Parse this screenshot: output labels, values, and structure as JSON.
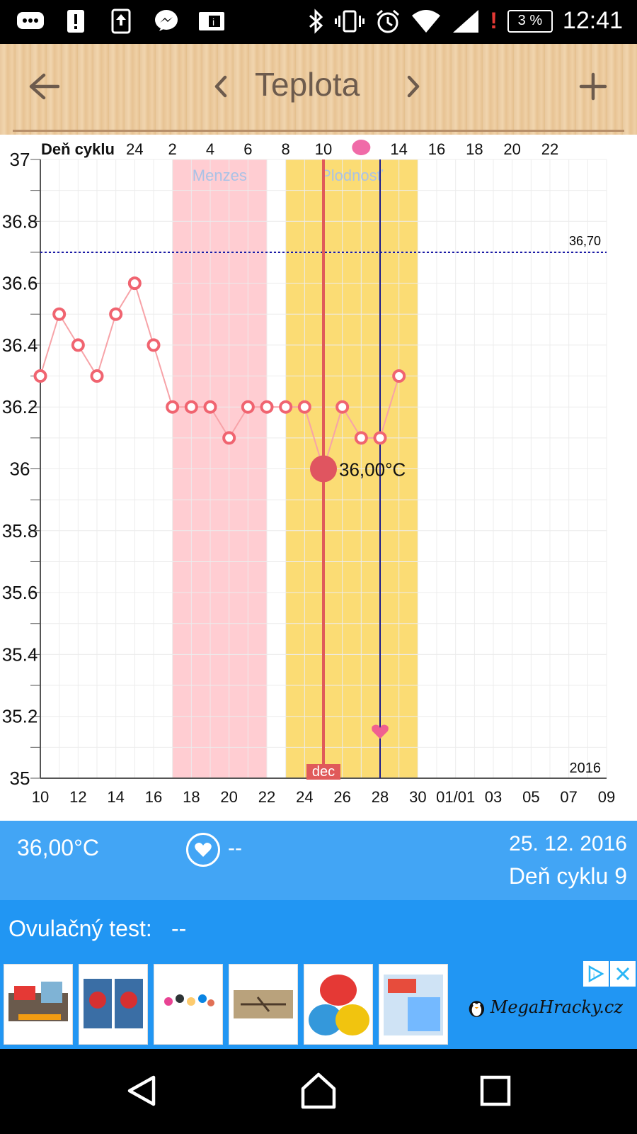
{
  "status_bar": {
    "time": "12:41",
    "battery": "3 %",
    "alert": "!",
    "icons": [
      "chat-icon",
      "alert-icon",
      "upload-icon",
      "messenger-icon",
      "info-card-icon",
      "bluetooth-icon",
      "vibrate-icon",
      "alarm-icon",
      "wifi-icon",
      "signal-icon"
    ]
  },
  "toolbar": {
    "title": "Teplota",
    "back_icon": "arrow-left-icon",
    "prev_icon": "chevron-left-icon",
    "next_icon": "chevron-right-icon",
    "add_icon": "plus-icon"
  },
  "chart_data": {
    "type": "line",
    "y_ticks": [
      "37",
      "36.8",
      "36.6",
      "36.4",
      "36.2",
      "36",
      "35.8",
      "35.6",
      "35.4",
      "35.2",
      "35"
    ],
    "ylim": [
      35,
      37
    ],
    "x_ticks": [
      "10",
      "12",
      "14",
      "16",
      "18",
      "20",
      "22",
      "24",
      "26",
      "28",
      "30",
      "01/01",
      "03",
      "05",
      "07",
      "09"
    ],
    "cycle_label": "Deň cyklu",
    "cycle_ticks": [
      "24",
      "2",
      "4",
      "6",
      "8",
      "10",
      "",
      "14",
      "16",
      "18",
      "20",
      "22"
    ],
    "x_range_days": [
      10,
      40
    ],
    "series": [
      {
        "x": [
          10,
          11,
          12,
          13,
          14,
          15,
          16,
          17,
          18,
          19,
          20,
          21,
          22,
          23,
          24,
          25,
          26,
          27,
          28,
          29
        ],
        "values": [
          36.3,
          36.5,
          36.4,
          36.3,
          36.5,
          36.6,
          36.4,
          36.2,
          36.2,
          36.2,
          36.1,
          36.2,
          36.2,
          36.2,
          36.2,
          36.0,
          36.2,
          36.1,
          36.1,
          36.3
        ]
      }
    ],
    "bands": [
      {
        "label": "Menzes",
        "from": 17,
        "to": 22,
        "color": "#ffcdd2"
      },
      {
        "label": "Plodnosť",
        "from": 23,
        "to": 30,
        "color": "#fbdc74"
      }
    ],
    "reference_line": {
      "value": 36.7,
      "label": "36,70",
      "color": "#1a1aa6"
    },
    "selected": {
      "x": 25,
      "value": 36.0,
      "label": "36,00°C",
      "month_label": "dec"
    },
    "ovulation_x": 28,
    "heart_marker": {
      "x": 28,
      "value": 35.15
    },
    "year_label": "2016",
    "line_color": "#f06470"
  },
  "info": {
    "temperature": "36,00°C",
    "heart_value": "--",
    "date": "25. 12. 2016",
    "cycle_day": "Deň cyklu 9"
  },
  "ovulation": {
    "label": "Ovulačný test:",
    "value": "--"
  },
  "ad": {
    "brand": "MegaHracky.cz",
    "thumbs": [
      "hot-wheels-track",
      "spiderman-figures",
      "disney-figures",
      "model-plane",
      "snow-sleds",
      "guess-who-game"
    ]
  }
}
